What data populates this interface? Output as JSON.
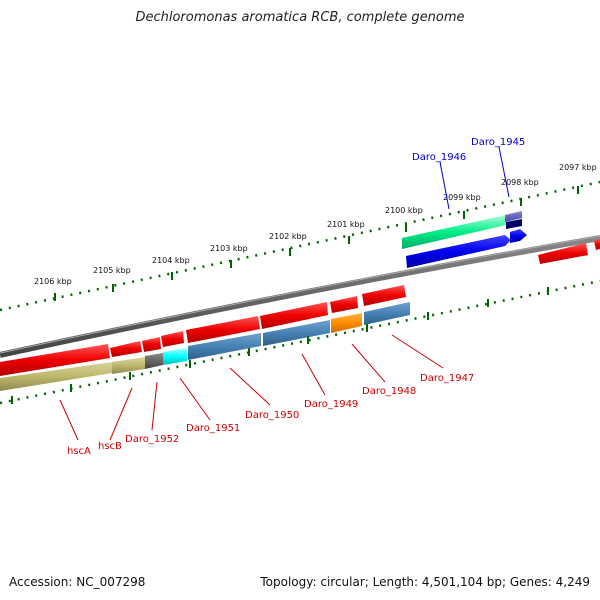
{
  "title": "Dechloromonas aromatica RCB, complete genome",
  "footer": {
    "accession": "Accession: NC_007298",
    "summary": "Topology: circular; Length: 4,501,104 bp; Genes: 4,249"
  },
  "scale_labels": [
    "2106 kbp",
    "2105 kbp",
    "2104 kbp",
    "2103 kbp",
    "2102 kbp",
    "2101 kbp",
    "2100 kbp",
    "2099 kbp",
    "2098 kbp",
    "2097 kbp"
  ],
  "lower_gene_labels": [
    "hscA",
    "hscB",
    "Daro_1952",
    "Daro_1951",
    "Daro_1950",
    "Daro_1949",
    "Daro_1948",
    "Daro_1947"
  ],
  "upper_gene_labels": [
    "Daro_1946",
    "Daro_1945"
  ],
  "colors": {
    "red_gene": "#ee0000",
    "blue_gene": "#0000ee",
    "steel_feature": "#4682b4",
    "khaki_feature": "#bdb76b",
    "aqua_feature": "#00ffff",
    "orange_feature": "#ff8c00",
    "green_feature": "#00ee88",
    "backbone": "#808080",
    "tick_green": "#006400"
  }
}
